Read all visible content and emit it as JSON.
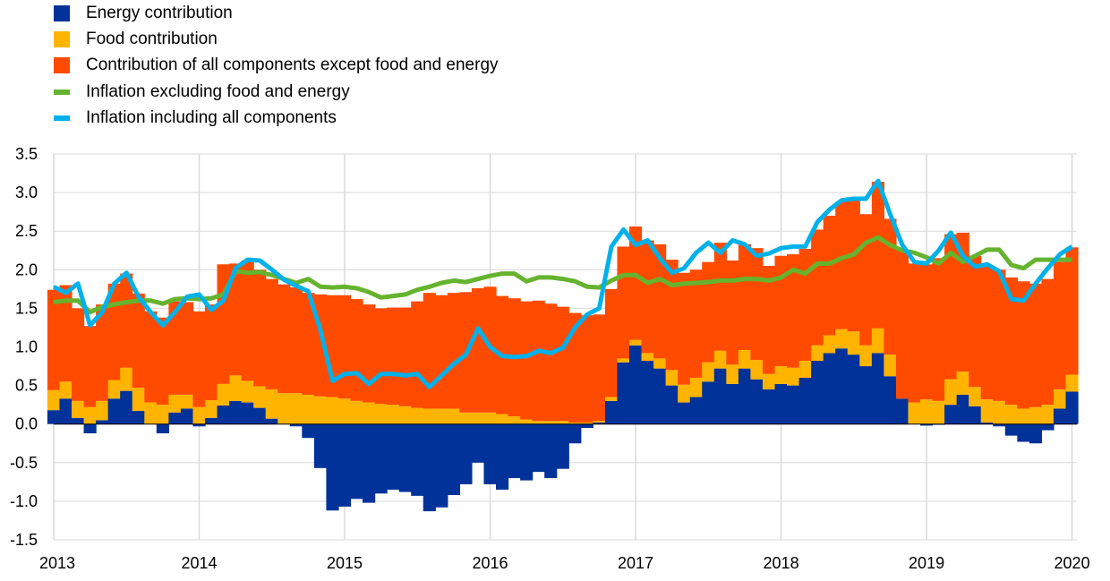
{
  "legend": {
    "energy": "Energy contribution",
    "food": "Food contribution",
    "core": "Contribution of all components except food and energy",
    "core_line": "Inflation excluding food and energy",
    "headline_line": "Inflation including all components"
  },
  "colors": {
    "energy": "#003299",
    "food": "#FFB400",
    "core": "#FF4B00",
    "core_line": "#65B32E",
    "headline_line": "#00B1EA",
    "grid": "#D9D9D9"
  },
  "chart_data": {
    "type": "bar",
    "stacked": true,
    "title": "",
    "xlabel": "",
    "ylabel": "",
    "ylim": [
      -1.5,
      3.5
    ],
    "yticks": [
      "3.5",
      "3.0",
      "2.5",
      "2.0",
      "1.5",
      "1.0",
      "0.5",
      "0.0",
      "-0.5",
      "-1.0",
      "-1.5"
    ],
    "ytick_values": [
      3.5,
      3.0,
      2.5,
      2.0,
      1.5,
      1.0,
      0.5,
      0.0,
      -0.5,
      -1.0,
      -1.5
    ],
    "xticks": [
      "2013",
      "2014",
      "2015",
      "2016",
      "2017",
      "2018",
      "2019",
      "2020"
    ],
    "start_period": "2013-01",
    "months": 85,
    "grid": true,
    "legend_position": "top-left",
    "series": [
      {
        "name": "Energy contribution",
        "kind": "bar",
        "values": [
          0.18,
          0.33,
          0.08,
          -0.12,
          0.05,
          0.33,
          0.43,
          0.17,
          0.0,
          -0.12,
          0.15,
          0.2,
          -0.03,
          0.08,
          0.24,
          0.3,
          0.28,
          0.21,
          0.07,
          0.0,
          -0.03,
          -0.18,
          -0.57,
          -1.12,
          -1.07,
          -0.97,
          -1.02,
          -0.9,
          -0.85,
          -0.88,
          -0.93,
          -1.13,
          -1.08,
          -0.92,
          -0.78,
          -0.5,
          -0.78,
          -0.85,
          -0.7,
          -0.73,
          -0.62,
          -0.7,
          -0.58,
          -0.25,
          -0.05,
          0.02,
          0.3,
          0.8,
          1.02,
          0.82,
          0.72,
          0.5,
          0.28,
          0.35,
          0.55,
          0.72,
          0.52,
          0.72,
          0.58,
          0.45,
          0.52,
          0.5,
          0.6,
          0.82,
          0.92,
          0.98,
          0.9,
          0.75,
          0.92,
          0.62,
          0.33,
          0.0,
          -0.02,
          -0.01,
          0.25,
          0.38,
          0.23,
          0.02,
          -0.03,
          -0.15,
          -0.23,
          -0.25,
          -0.08,
          0.2,
          0.42
        ]
      },
      {
        "name": "Food contribution",
        "kind": "bar",
        "values": [
          0.26,
          0.22,
          0.22,
          0.22,
          0.25,
          0.24,
          0.3,
          0.3,
          0.28,
          0.25,
          0.23,
          0.18,
          0.22,
          0.23,
          0.28,
          0.33,
          0.28,
          0.28,
          0.38,
          0.4,
          0.4,
          0.38,
          0.36,
          0.35,
          0.33,
          0.3,
          0.28,
          0.26,
          0.25,
          0.23,
          0.21,
          0.2,
          0.2,
          0.2,
          0.15,
          0.15,
          0.15,
          0.13,
          0.1,
          0.06,
          0.04,
          0.04,
          0.04,
          0.02,
          0.02,
          0.02,
          0.05,
          0.05,
          0.07,
          0.1,
          0.13,
          0.2,
          0.23,
          0.25,
          0.25,
          0.23,
          0.25,
          0.24,
          0.25,
          0.2,
          0.23,
          0.23,
          0.22,
          0.2,
          0.23,
          0.25,
          0.3,
          0.27,
          0.32,
          0.28,
          0.0,
          0.28,
          0.32,
          0.3,
          0.33,
          0.3,
          0.25,
          0.3,
          0.3,
          0.25,
          0.2,
          0.22,
          0.25,
          0.25,
          0.22
        ]
      },
      {
        "name": "Contribution of all components except food and energy",
        "kind": "bar",
        "values": [
          1.3,
          1.25,
          1.2,
          1.05,
          1.25,
          1.25,
          1.22,
          1.22,
          1.18,
          1.13,
          1.21,
          1.2,
          1.24,
          1.24,
          1.55,
          1.45,
          1.56,
          1.51,
          1.43,
          1.41,
          1.37,
          1.32,
          1.32,
          1.32,
          1.34,
          1.32,
          1.27,
          1.24,
          1.26,
          1.28,
          1.38,
          1.5,
          1.47,
          1.5,
          1.56,
          1.61,
          1.63,
          1.53,
          1.53,
          1.53,
          1.56,
          1.52,
          1.48,
          1.42,
          1.39,
          1.38,
          1.4,
          1.45,
          1.47,
          1.46,
          1.48,
          1.43,
          1.45,
          1.4,
          1.3,
          1.4,
          1.35,
          1.37,
          1.45,
          1.4,
          1.43,
          1.47,
          1.45,
          1.5,
          1.55,
          1.65,
          1.7,
          1.7,
          1.9,
          1.76,
          1.92,
          1.8,
          1.75,
          1.85,
          1.88,
          1.8,
          1.7,
          1.72,
          1.7,
          1.65,
          1.65,
          1.6,
          1.63,
          1.65,
          1.65
        ]
      },
      {
        "name": "Inflation excluding food and energy",
        "kind": "line",
        "values": [
          1.58,
          1.6,
          1.6,
          1.45,
          1.52,
          1.55,
          1.58,
          1.6,
          1.6,
          1.56,
          1.62,
          1.63,
          1.62,
          1.63,
          1.68,
          1.98,
          1.96,
          1.97,
          1.93,
          1.88,
          1.83,
          1.88,
          1.78,
          1.77,
          1.78,
          1.76,
          1.71,
          1.64,
          1.66,
          1.68,
          1.74,
          1.78,
          1.83,
          1.86,
          1.84,
          1.88,
          1.92,
          1.95,
          1.95,
          1.85,
          1.9,
          1.9,
          1.88,
          1.85,
          1.78,
          1.77,
          1.86,
          1.93,
          1.93,
          1.83,
          1.88,
          1.8,
          1.82,
          1.83,
          1.84,
          1.86,
          1.86,
          1.88,
          1.88,
          1.86,
          1.9,
          2.0,
          1.95,
          2.08,
          2.08,
          2.15,
          2.2,
          2.35,
          2.42,
          2.32,
          2.25,
          2.22,
          2.16,
          2.08,
          2.22,
          2.1,
          2.18,
          2.26,
          2.26,
          2.06,
          2.02,
          2.13,
          2.13,
          2.13,
          2.13
        ]
      },
      {
        "name": "Inflation including all components",
        "kind": "line",
        "values": [
          1.78,
          1.7,
          1.82,
          1.28,
          1.45,
          1.82,
          1.96,
          1.65,
          1.45,
          1.28,
          1.45,
          1.65,
          1.68,
          1.48,
          1.6,
          2.02,
          2.13,
          2.12,
          2.0,
          1.87,
          1.79,
          1.72,
          1.22,
          0.56,
          0.65,
          0.66,
          0.52,
          0.65,
          0.65,
          0.63,
          0.65,
          0.48,
          0.63,
          0.78,
          0.9,
          1.24,
          1.0,
          0.88,
          0.87,
          0.88,
          0.95,
          0.92,
          0.99,
          1.25,
          1.42,
          1.5,
          2.3,
          2.52,
          2.32,
          2.38,
          2.15,
          1.96,
          2.02,
          2.22,
          2.35,
          2.22,
          2.38,
          2.33,
          2.18,
          2.21,
          2.28,
          2.3,
          2.3,
          2.62,
          2.78,
          2.9,
          2.92,
          2.92,
          3.15,
          2.72,
          2.32,
          2.1,
          2.08,
          2.25,
          2.48,
          2.18,
          2.04,
          2.07,
          1.98,
          1.62,
          1.6,
          1.82,
          2.02,
          2.2,
          2.3
        ]
      }
    ]
  }
}
